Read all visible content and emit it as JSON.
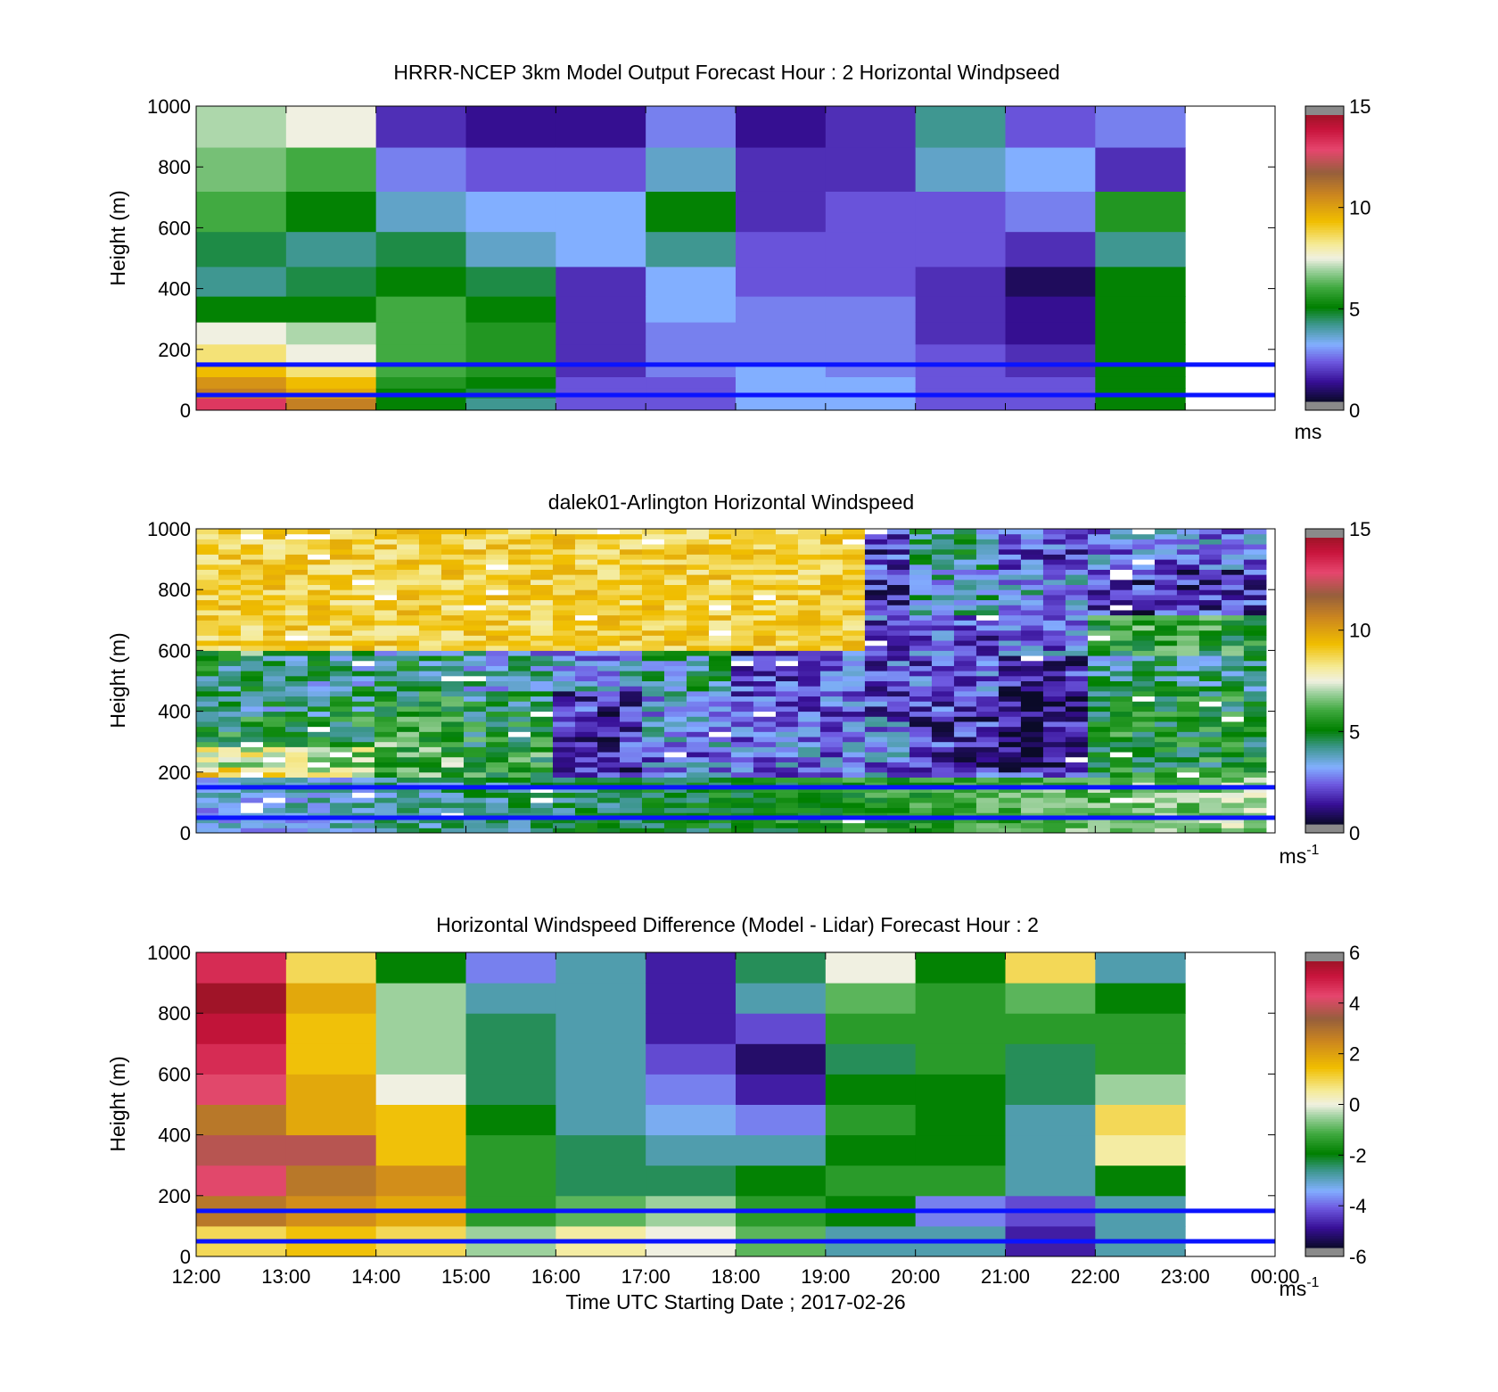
{
  "chart_data": [
    {
      "type": "heatmap",
      "title": "HRRR-NCEP 3km Model Output   Forecast Hour : 2 Horizontal Windpseed",
      "ylabel": "Height (m)",
      "yticks": [
        "0",
        "200",
        "400",
        "600",
        "800",
        "1000"
      ],
      "ylim": [
        0,
        1000
      ],
      "colorbar": {
        "ticks": [
          "0",
          "5",
          "10",
          "15"
        ],
        "range": [
          0,
          15
        ],
        "unit": "ms"
      },
      "reference_lines_m": [
        50,
        150
      ],
      "hours": [
        "12:00",
        "13:00",
        "14:00",
        "15:00",
        "16:00",
        "17:00",
        "18:00",
        "19:00",
        "20:00",
        "21:00",
        "22:00"
      ],
      "height_levels_m": [
        25,
        55,
        90,
        130,
        185,
        250,
        330,
        420,
        525,
        650,
        790,
        940
      ],
      "values": [
        [
          13.5,
          11,
          10.5,
          9.5,
          8.5,
          7.5,
          5,
          4,
          4.5,
          6,
          6.5,
          7
        ],
        [
          11,
          10,
          9.5,
          8.5,
          7.5,
          7,
          5,
          4.5,
          4,
          5,
          6,
          7.5
        ],
        [
          5,
          5,
          5.5,
          6,
          6,
          6,
          6,
          5,
          4.5,
          3.5,
          2.5,
          1.5
        ],
        [
          4,
          4.5,
          5,
          5.5,
          5.5,
          5.5,
          5,
          4.5,
          3.5,
          3,
          2,
          1
        ],
        [
          2,
          2,
          2,
          1.5,
          1.5,
          1.5,
          1.5,
          1.5,
          3,
          3,
          2,
          1
        ],
        [
          2,
          2,
          2,
          2.5,
          2.5,
          2.5,
          3,
          3,
          4,
          5,
          3.5,
          2.5
        ],
        [
          3,
          3,
          3,
          3,
          2.5,
          2.5,
          2.5,
          2,
          2,
          1.5,
          1.5,
          1
        ],
        [
          3,
          3,
          3,
          2.5,
          2.5,
          2.5,
          2.5,
          2,
          2,
          2,
          1.5,
          1.5
        ],
        [
          2,
          2,
          2,
          2,
          2,
          1.5,
          1.5,
          1.5,
          2,
          2,
          3.5,
          4
        ],
        [
          2,
          2,
          2,
          1.5,
          1.5,
          1,
          1,
          0.5,
          1.5,
          2.5,
          3,
          2
        ],
        [
          5,
          5,
          5,
          5,
          5,
          5,
          5,
          5,
          4,
          5.5,
          1.5,
          2.5
        ]
      ]
    },
    {
      "type": "heatmap",
      "title": "dalek01-Arlington  Horizontal Windspeed",
      "ylabel": "Height (m)",
      "yticks": [
        "0",
        "200",
        "400",
        "600",
        "800",
        "1000"
      ],
      "ylim": [
        0,
        1000
      ],
      "colorbar": {
        "ticks": [
          "0",
          "5",
          "10",
          "15"
        ],
        "range": [
          0,
          15
        ],
        "unit": "ms",
        "unit_sup": "-1"
      },
      "reference_lines_m": [
        50,
        150
      ],
      "time_range_h": [
        12,
        23.9
      ],
      "height_range_m": [
        0,
        1000
      ]
    },
    {
      "type": "heatmap",
      "title": "Horizontal Windspeed Difference (Model - Lidar) Forecast Hour : 2",
      "ylabel": "Height (m)",
      "xlabel": "Time UTC  Starting Date ; 2017-02-26",
      "xticks": [
        "12:00",
        "13:00",
        "14:00",
        "15:00",
        "16:00",
        "17:00",
        "18:00",
        "19:00",
        "20:00",
        "21:00",
        "22:00",
        "23:00",
        "00:00"
      ],
      "yticks": [
        "0",
        "200",
        "400",
        "600",
        "800",
        "1000"
      ],
      "ylim": [
        0,
        1000
      ],
      "colorbar": {
        "ticks": [
          "-6",
          "-4",
          "-2",
          "0",
          "2",
          "4",
          "6"
        ],
        "range": [
          -6,
          6
        ],
        "unit": "ms",
        "unit_sup": "-1"
      },
      "reference_lines_m": [
        50,
        150
      ],
      "hours": [
        "12:00",
        "13:00",
        "14:00",
        "15:00",
        "16:00",
        "17:00",
        "18:00",
        "19:00",
        "20:00",
        "21:00",
        "22:00"
      ],
      "height_levels_m": [
        50,
        150,
        250,
        350,
        450,
        550,
        650,
        750,
        850,
        950
      ],
      "values": [
        [
          1,
          3,
          4.5,
          4,
          3,
          4.5,
          5,
          5.5,
          6,
          5
        ],
        [
          1.5,
          2.5,
          3,
          4,
          2,
          2,
          1.5,
          1.5,
          2,
          1
        ],
        [
          1,
          2,
          2.5,
          1.5,
          1.5,
          0,
          -0.5,
          -0.5,
          -0.5,
          -2
        ],
        [
          -0.5,
          -1.5,
          -1.5,
          -1.5,
          -2,
          -2.5,
          -2.5,
          -2.5,
          -3,
          -4
        ],
        [
          0.5,
          -1,
          -2.5,
          -2.5,
          -3,
          -3,
          -3,
          -3,
          -3,
          -3
        ],
        [
          0,
          -0.5,
          -2.5,
          -3,
          -3.5,
          -4,
          -4.5,
          -5,
          -5,
          -5
        ],
        [
          -1,
          -1.5,
          -2,
          -3,
          -4,
          -5,
          -5.5,
          -4.5,
          -3,
          -2.5
        ],
        [
          -3,
          -2,
          -1.5,
          -2,
          -1.5,
          -2,
          -2.5,
          -1.5,
          -1,
          0
        ],
        [
          -3,
          -4,
          -1.5,
          -2,
          -2,
          -2,
          -1.5,
          -1.5,
          -1.5,
          -2
        ],
        [
          -5,
          -4.5,
          -3,
          -3,
          -3,
          -2.5,
          -2.5,
          -1.5,
          -1,
          1
        ],
        [
          -3,
          -3,
          -2,
          0.5,
          1,
          -0.5,
          -1.5,
          -1.5,
          -2,
          -3
        ]
      ]
    }
  ]
}
